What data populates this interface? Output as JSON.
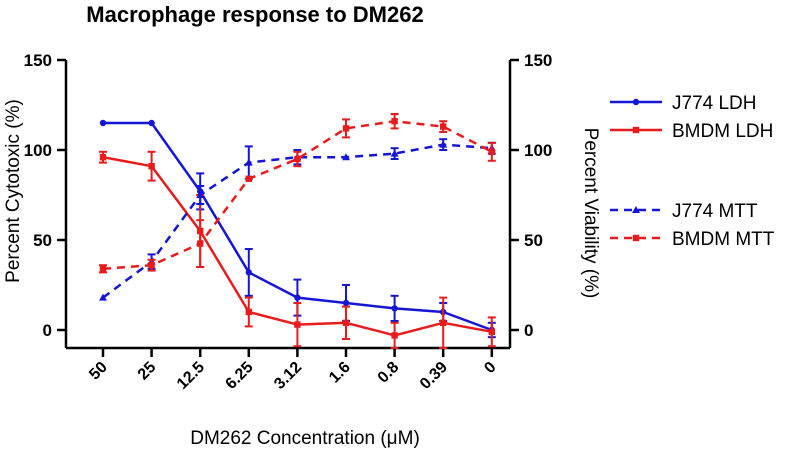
{
  "chart_data": {
    "type": "line",
    "title": "Macrophage response to DM262",
    "xlabel": "DM262 Concentration (μM)",
    "ylabel_left": "Percent Cytotoxic (%)",
    "ylabel_right": "Percent Viability (%)",
    "categories": [
      "50",
      "25",
      "12.5",
      "6.25",
      "3.12",
      "1.6",
      "0.8",
      "0.39",
      "0"
    ],
    "y_left_ticks": [
      0,
      50,
      100,
      150
    ],
    "y_right_ticks": [
      0,
      50,
      100,
      150
    ],
    "ylim_left": [
      -10,
      150
    ],
    "ylim_right": [
      -10,
      150
    ],
    "grid": false,
    "legend_position": "right",
    "series": [
      {
        "name": "J774 LDH",
        "axis": "left",
        "style": "solid",
        "marker": "circle",
        "color": "#1515d6",
        "values": [
          115,
          115,
          77,
          32,
          18,
          15,
          12,
          10,
          0
        ],
        "errors": [
          0,
          0,
          10,
          13,
          10,
          10,
          7,
          5,
          4
        ]
      },
      {
        "name": "BMDM LDH",
        "axis": "left",
        "style": "solid",
        "marker": "square",
        "color": "#e81c1c",
        "values": [
          96,
          91,
          55,
          10,
          3,
          4,
          -3,
          4,
          -1
        ],
        "errors": [
          3,
          8,
          20,
          8,
          12,
          9,
          7,
          14,
          8
        ]
      },
      {
        "name": "J774 MTT",
        "axis": "right",
        "style": "dashed",
        "marker": "triangle",
        "color": "#1515d6",
        "values": [
          18,
          38,
          75,
          93,
          96,
          96,
          98,
          103,
          101
        ],
        "errors": [
          0,
          4,
          5,
          9,
          4,
          0,
          3,
          3,
          3
        ]
      },
      {
        "name": "BMDM MTT",
        "axis": "right",
        "style": "dashed",
        "marker": "square",
        "color": "#e81c1c",
        "values": [
          34,
          36,
          48,
          84,
          95,
          112,
          116,
          113,
          99
        ],
        "errors": [
          2,
          3,
          13,
          0,
          4,
          5,
          4,
          3,
          5
        ]
      }
    ]
  }
}
